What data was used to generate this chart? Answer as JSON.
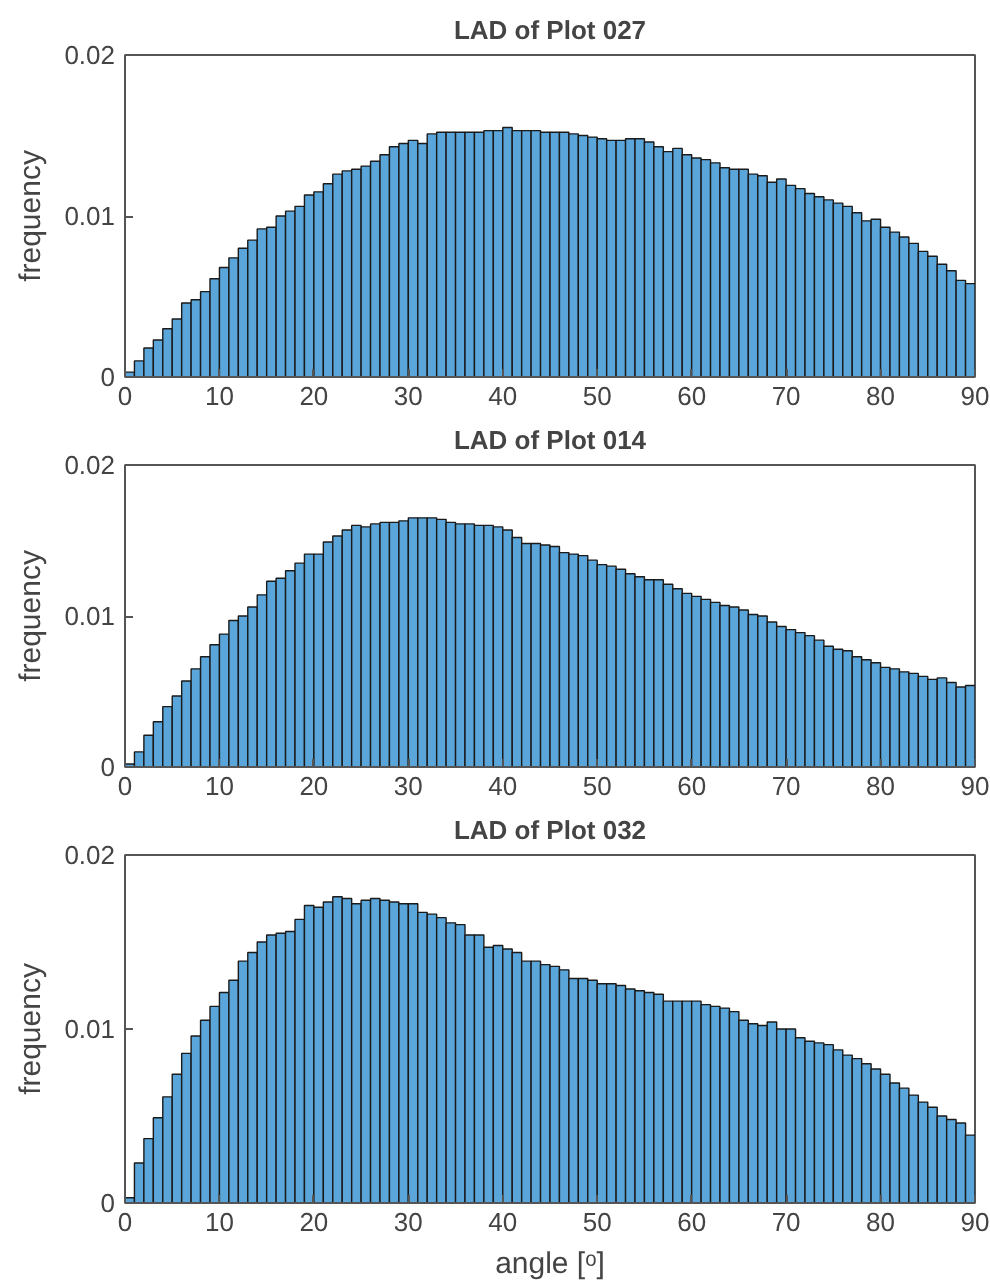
{
  "chart_data": [
    {
      "type": "histogram",
      "title": "LAD of Plot 027",
      "ylabel": "frequency",
      "color": "#5aa5d9",
      "bins": [
        0,
        1,
        2,
        3,
        4,
        5,
        6,
        7,
        8,
        9,
        10,
        11,
        12,
        13,
        14,
        15,
        16,
        17,
        18,
        19,
        20,
        21,
        22,
        23,
        24,
        25,
        26,
        27,
        28,
        29,
        30,
        31,
        32,
        33,
        34,
        35,
        36,
        37,
        38,
        39,
        40,
        41,
        42,
        43,
        44,
        45,
        46,
        47,
        48,
        49,
        50,
        51,
        52,
        53,
        54,
        55,
        56,
        57,
        58,
        59,
        60,
        61,
        62,
        63,
        64,
        65,
        66,
        67,
        68,
        69,
        70,
        71,
        72,
        73,
        74,
        75,
        76,
        77,
        78,
        79,
        80,
        81,
        82,
        83,
        84,
        85,
        86,
        87,
        88,
        89,
        90
      ],
      "values": [
        0.0003,
        0.001,
        0.0018,
        0.0023,
        0.003,
        0.0036,
        0.0046,
        0.0048,
        0.0053,
        0.0061,
        0.0068,
        0.0074,
        0.008,
        0.0085,
        0.0092,
        0.0093,
        0.01,
        0.0103,
        0.0106,
        0.0113,
        0.0115,
        0.012,
        0.0126,
        0.0128,
        0.0129,
        0.0131,
        0.0134,
        0.0138,
        0.0143,
        0.0145,
        0.0147,
        0.0145,
        0.0151,
        0.0152,
        0.0152,
        0.0152,
        0.0152,
        0.0152,
        0.0153,
        0.0153,
        0.0155,
        0.0153,
        0.0153,
        0.0153,
        0.0152,
        0.0152,
        0.0152,
        0.0151,
        0.015,
        0.0149,
        0.0148,
        0.0147,
        0.0147,
        0.0148,
        0.0148,
        0.0146,
        0.0143,
        0.014,
        0.0142,
        0.0138,
        0.0136,
        0.0135,
        0.0133,
        0.013,
        0.0129,
        0.0129,
        0.0126,
        0.0125,
        0.0121,
        0.0123,
        0.0119,
        0.0117,
        0.0114,
        0.0112,
        0.011,
        0.0108,
        0.0106,
        0.0102,
        0.0097,
        0.0098,
        0.0093,
        0.009,
        0.0087,
        0.0083,
        0.0078,
        0.0075,
        0.007,
        0.0066,
        0.006,
        0.0058
      ],
      "xlim": [
        0,
        90
      ],
      "xticks": [
        0,
        10,
        20,
        30,
        40,
        50,
        60,
        70,
        80,
        90
      ],
      "ylim": [
        0,
        0.02
      ],
      "yticks": [
        0,
        0.01,
        0.02
      ],
      "grid": false
    },
    {
      "type": "histogram",
      "title": "LAD of Plot 014",
      "ylabel": "frequency",
      "color": "#5aa5d9",
      "bins": [
        0,
        1,
        2,
        3,
        4,
        5,
        6,
        7,
        8,
        9,
        10,
        11,
        12,
        13,
        14,
        15,
        16,
        17,
        18,
        19,
        20,
        21,
        22,
        23,
        24,
        25,
        26,
        27,
        28,
        29,
        30,
        31,
        32,
        33,
        34,
        35,
        36,
        37,
        38,
        39,
        40,
        41,
        42,
        43,
        44,
        45,
        46,
        47,
        48,
        49,
        50,
        51,
        52,
        53,
        54,
        55,
        56,
        57,
        58,
        59,
        60,
        61,
        62,
        63,
        64,
        65,
        66,
        67,
        68,
        69,
        70,
        71,
        72,
        73,
        74,
        75,
        76,
        77,
        78,
        79,
        80,
        81,
        82,
        83,
        84,
        85,
        86,
        87,
        88,
        89,
        90
      ],
      "values": [
        0.0002,
        0.001,
        0.0021,
        0.003,
        0.004,
        0.0047,
        0.0057,
        0.0065,
        0.0073,
        0.0081,
        0.0088,
        0.0097,
        0.01,
        0.0106,
        0.0114,
        0.0123,
        0.0125,
        0.013,
        0.0135,
        0.0141,
        0.0141,
        0.0149,
        0.0153,
        0.0157,
        0.016,
        0.0159,
        0.0161,
        0.0162,
        0.0162,
        0.0163,
        0.0165,
        0.0165,
        0.0165,
        0.0164,
        0.0162,
        0.0161,
        0.0161,
        0.016,
        0.016,
        0.0159,
        0.0157,
        0.0152,
        0.0148,
        0.0148,
        0.0147,
        0.0146,
        0.0142,
        0.0141,
        0.014,
        0.0137,
        0.0134,
        0.0133,
        0.0131,
        0.0128,
        0.0126,
        0.0124,
        0.0124,
        0.0121,
        0.0118,
        0.0115,
        0.0113,
        0.0111,
        0.0109,
        0.0107,
        0.0106,
        0.0104,
        0.0101,
        0.01,
        0.0096,
        0.0093,
        0.0091,
        0.0089,
        0.0087,
        0.0084,
        0.008,
        0.0078,
        0.0077,
        0.0073,
        0.0071,
        0.0069,
        0.0066,
        0.0065,
        0.0063,
        0.0062,
        0.006,
        0.0058,
        0.0059,
        0.0056,
        0.0053,
        0.0054
      ],
      "xlim": [
        0,
        90
      ],
      "xticks": [
        0,
        10,
        20,
        30,
        40,
        50,
        60,
        70,
        80,
        90
      ],
      "ylim": [
        0,
        0.02
      ],
      "yticks": [
        0,
        0.01,
        0.02
      ],
      "grid": false
    },
    {
      "type": "histogram",
      "title": "LAD of Plot 032",
      "ylabel": "frequency",
      "xlabel": "angle [ᵒ]",
      "color": "#5aa5d9",
      "bins": [
        0,
        1,
        2,
        3,
        4,
        5,
        6,
        7,
        8,
        9,
        10,
        11,
        12,
        13,
        14,
        15,
        16,
        17,
        18,
        19,
        20,
        21,
        22,
        23,
        24,
        25,
        26,
        27,
        28,
        29,
        30,
        31,
        32,
        33,
        34,
        35,
        36,
        37,
        38,
        39,
        40,
        41,
        42,
        43,
        44,
        45,
        46,
        47,
        48,
        49,
        50,
        51,
        52,
        53,
        54,
        55,
        56,
        57,
        58,
        59,
        60,
        61,
        62,
        63,
        64,
        65,
        66,
        67,
        68,
        69,
        70,
        71,
        72,
        73,
        74,
        75,
        76,
        77,
        78,
        79,
        80,
        81,
        82,
        83,
        84,
        85,
        86,
        87,
        88,
        89,
        90
      ],
      "values": [
        0.0003,
        0.0023,
        0.0037,
        0.0049,
        0.0061,
        0.0074,
        0.0086,
        0.0096,
        0.0105,
        0.0113,
        0.0121,
        0.0128,
        0.0139,
        0.0144,
        0.015,
        0.0154,
        0.0155,
        0.0156,
        0.0163,
        0.0171,
        0.017,
        0.0173,
        0.0176,
        0.0175,
        0.0172,
        0.0174,
        0.0175,
        0.0174,
        0.0173,
        0.0172,
        0.0172,
        0.0167,
        0.0166,
        0.0164,
        0.0161,
        0.016,
        0.0154,
        0.0154,
        0.0147,
        0.0148,
        0.0146,
        0.0144,
        0.0139,
        0.0139,
        0.0137,
        0.0136,
        0.0134,
        0.0129,
        0.0129,
        0.0128,
        0.0126,
        0.0126,
        0.0125,
        0.0123,
        0.0122,
        0.0121,
        0.012,
        0.0116,
        0.0116,
        0.0116,
        0.0116,
        0.0114,
        0.0113,
        0.0112,
        0.011,
        0.0105,
        0.0103,
        0.0102,
        0.0104,
        0.01,
        0.01,
        0.0095,
        0.0093,
        0.0092,
        0.0091,
        0.0088,
        0.0085,
        0.0083,
        0.008,
        0.0077,
        0.0074,
        0.0069,
        0.0066,
        0.0062,
        0.0058,
        0.0055,
        0.005,
        0.0048,
        0.0046,
        0.0039
      ],
      "xlim": [
        0,
        90
      ],
      "xticks": [
        0,
        10,
        20,
        30,
        40,
        50,
        60,
        70,
        80,
        90
      ],
      "ylim": [
        0,
        0.02
      ],
      "yticks": [
        0,
        0.01,
        0.02
      ],
      "grid": false
    }
  ]
}
